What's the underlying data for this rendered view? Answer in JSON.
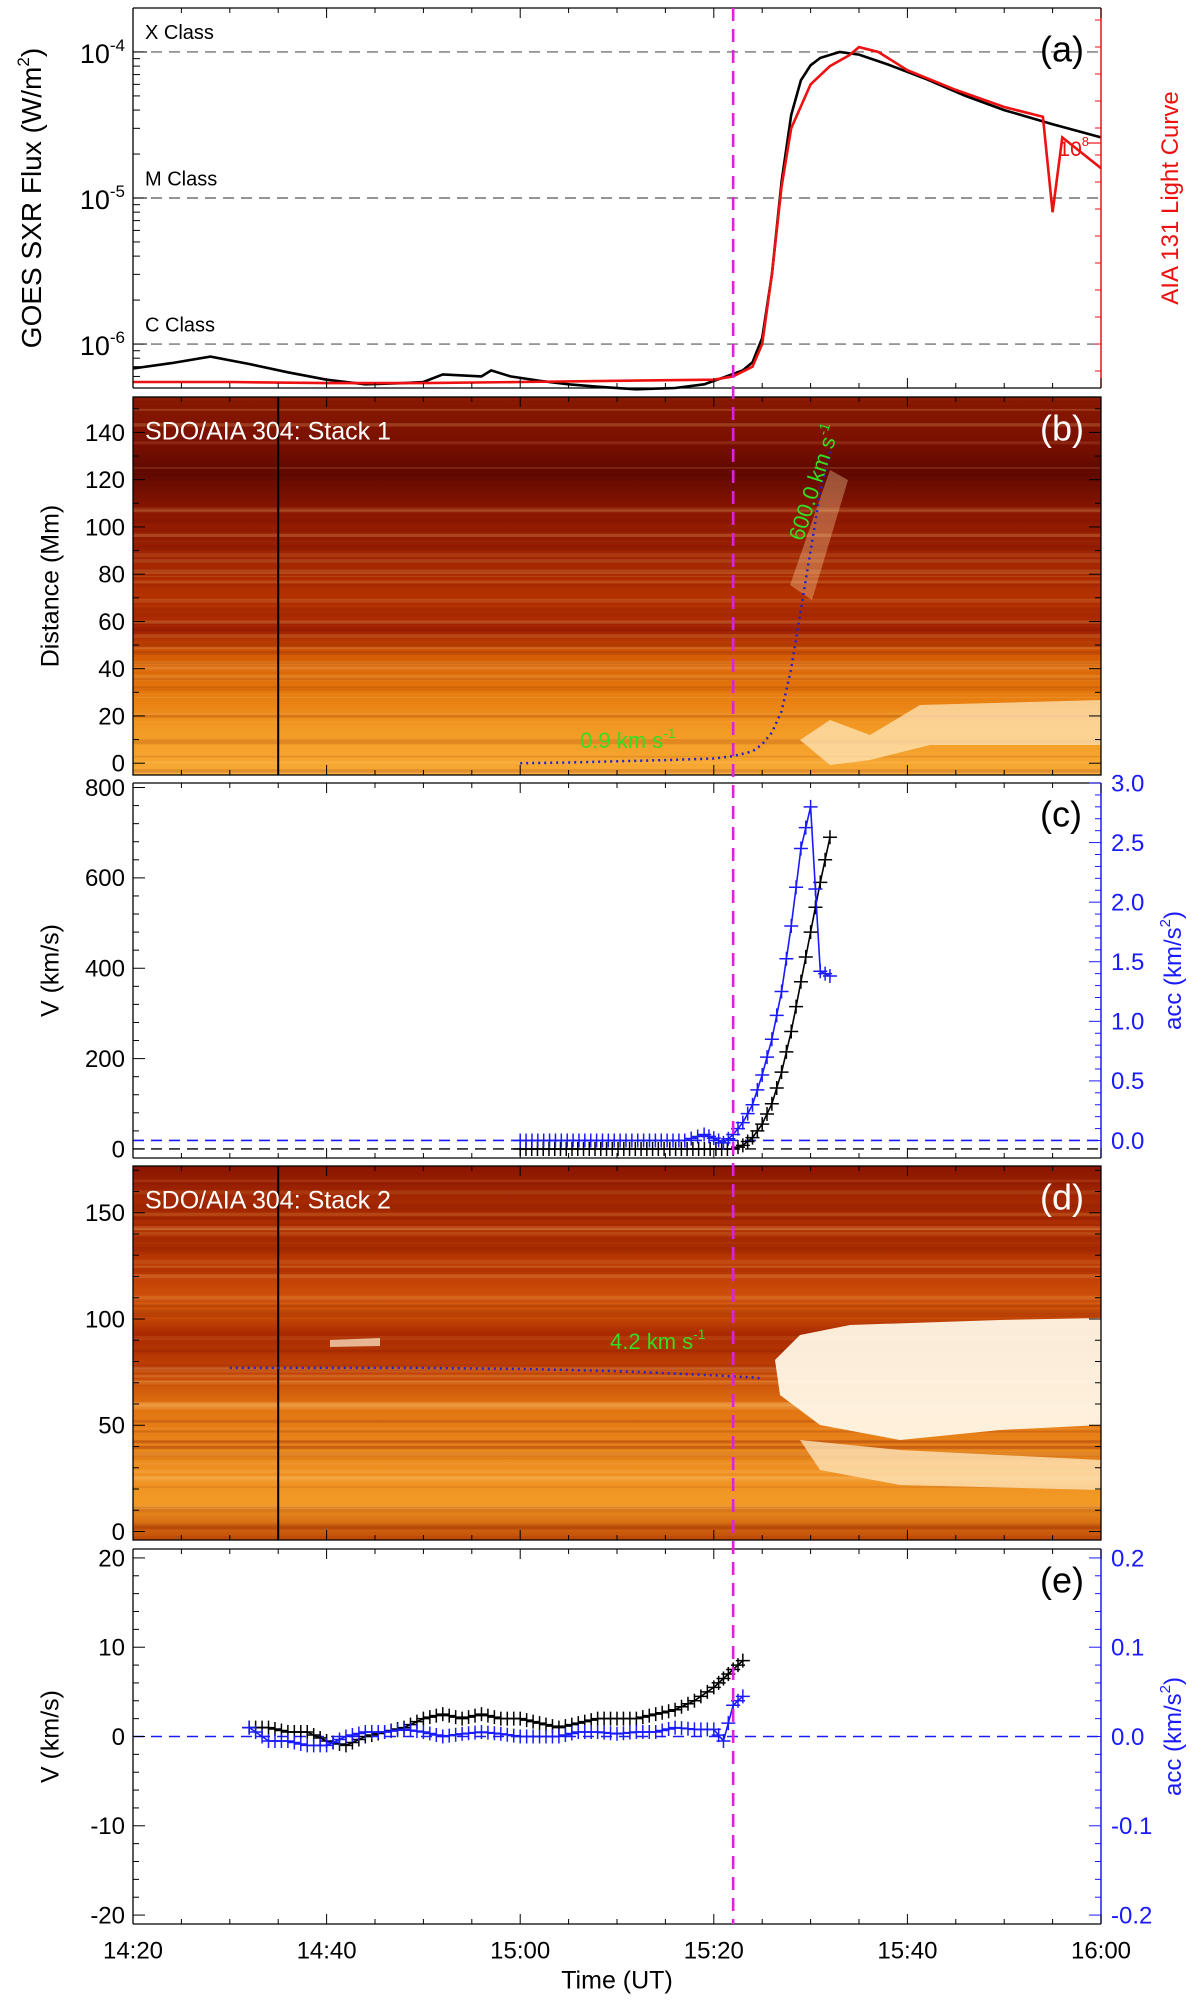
{
  "chart_data": [
    {
      "id": "a",
      "type": "line",
      "panel_label": "(a)",
      "ylabel": "GOES SXR Flux (W/m",
      "ylabel_sup": "2",
      "ylabel_close": ")",
      "y2label": "AIA 131 Light Curve",
      "y2_tick_label": "10",
      "y2_tick_sup": "8",
      "yscale": "log",
      "ylim": [
        5e-07,
        0.0002
      ],
      "yticks": [
        {
          "base": "10",
          "exp": "-6",
          "value": 1e-06
        },
        {
          "base": "10",
          "exp": "-5",
          "value": 1e-05
        },
        {
          "base": "10",
          "exp": "-4",
          "value": 0.0001
        }
      ],
      "class_lines": [
        {
          "label": "C Class",
          "value": 1e-06
        },
        {
          "label": "M Class",
          "value": 1e-05
        },
        {
          "label": "X Class",
          "value": 0.0001
        }
      ],
      "series": [
        {
          "color": "#000000",
          "x": [
            "14:20",
            "14:24",
            "14:28",
            "14:32",
            "14:36",
            "14:40",
            "14:44",
            "14:48",
            "14:50",
            "14:52",
            "14:54",
            "14:56",
            "14:57",
            "14:59",
            "15:02",
            "15:05",
            "15:08",
            "15:12",
            "15:16",
            "15:19",
            "15:21",
            "15:23",
            "15:24",
            "15:25",
            "15:26",
            "15:27",
            "15:28",
            "15:29",
            "15:30",
            "15:31",
            "15:33",
            "15:35",
            "15:38",
            "15:42",
            "15:46",
            "15:50",
            "15:55",
            "16:00"
          ],
          "y": [
            6.8e-07,
            7.4e-07,
            8.2e-07,
            7.3e-07,
            6.4e-07,
            5.7e-07,
            5.3e-07,
            5.4e-07,
            5.5e-07,
            6.2e-07,
            6.1e-07,
            6e-07,
            6.6e-07,
            6e-07,
            5.6e-07,
            5.3e-07,
            5.1e-07,
            4.9e-07,
            5e-07,
            5.3e-07,
            5.9e-07,
            6.6e-07,
            7.5e-07,
            1.1e-06,
            3e-06,
            1.3e-05,
            3.7e-05,
            6.4e-05,
            8.1e-05,
            9.1e-05,
            0.0001,
            9.6e-05,
            8.2e-05,
            6.5e-05,
            5e-05,
            4e-05,
            3.2e-05,
            2.6e-05
          ]
        },
        {
          "color": "#ee1111",
          "x": [
            "14:20",
            "14:30",
            "14:40",
            "14:50",
            "15:00",
            "15:10",
            "15:20",
            "15:22",
            "15:24",
            "15:25",
            "15:26",
            "15:27",
            "15:28",
            "15:30",
            "15:32",
            "15:34",
            "15:35",
            "15:37",
            "15:40",
            "15:45",
            "15:50",
            "15:54",
            "15:55",
            "15:56",
            "16:00"
          ],
          "y": [
            5.5e-07,
            5.5e-07,
            5.4e-07,
            5.4e-07,
            5.5e-07,
            5.6e-07,
            5.7e-07,
            6e-07,
            7e-07,
            1e-06,
            3e-06,
            1.2e-05,
            3e-05,
            6e-05,
            8e-05,
            9.5e-05,
            0.000108,
            0.0001,
            7.5e-05,
            5.5e-05,
            4.2e-05,
            3.6e-05,
            8e-06,
            2.6e-05,
            1.6e-05
          ]
        }
      ]
    },
    {
      "id": "b",
      "type": "heatmap",
      "panel_label": "(b)",
      "title": "SDO/AIA 304: Stack 1",
      "ylabel": "Distance (Mm)",
      "ylim": [
        -5,
        155
      ],
      "yticks": [
        0,
        20,
        40,
        60,
        80,
        100,
        120,
        140
      ],
      "annotations": [
        {
          "text": "0.9 km s",
          "sup": "-1"
        },
        {
          "text": "600.0 km s",
          "sup": "-1"
        }
      ],
      "fit_curve": {
        "x": [
          "15:00",
          "15:05",
          "15:10",
          "15:15",
          "15:20",
          "15:22",
          "15:24",
          "15:25",
          "15:26",
          "15:27",
          "15:28",
          "15:29",
          "15:30",
          "15:31",
          "15:32"
        ],
        "y": [
          0,
          0.3,
          0.8,
          1.3,
          2,
          3,
          5,
          8,
          13,
          22,
          40,
          65,
          90,
          115,
          132
        ]
      }
    },
    {
      "id": "c",
      "type": "line",
      "panel_label": "(c)",
      "ylabel": "V (km/s)",
      "y2label": "acc (km/s",
      "y2label_sup": "2",
      "y2label_close": ")",
      "ylim": [
        -20,
        810
      ],
      "yticks": [
        0,
        200,
        400,
        600,
        800
      ],
      "y2lim": [
        -0.147,
        3.0
      ],
      "y2ticks": [
        "0.0",
        "0.5",
        "1.0",
        "1.5",
        "2.0",
        "2.5",
        "3.0"
      ],
      "series": [
        {
          "name": "V",
          "color": "#000000",
          "axis": "left",
          "x": [
            "15:00",
            "15:22",
            "15:23",
            "15:24",
            "15:25",
            "15:26",
            "15:27",
            "15:28",
            "15:29",
            "15:30",
            "15:31",
            "15:32"
          ],
          "y": [
            0,
            0,
            8,
            25,
            55,
            100,
            170,
            260,
            370,
            480,
            590,
            690
          ]
        },
        {
          "name": "acc",
          "color": "#1a1aff",
          "axis": "right",
          "x": [
            "15:00",
            "15:17",
            "15:19",
            "15:20",
            "15:21",
            "15:22",
            "15:23",
            "15:24",
            "15:25",
            "15:26",
            "15:27",
            "15:28",
            "15:29",
            "15:30",
            "15:31",
            "15:32"
          ],
          "y": [
            0,
            0,
            0.05,
            0.02,
            -0.02,
            0.05,
            0.15,
            0.3,
            0.55,
            0.85,
            1.25,
            1.8,
            2.45,
            2.8,
            1.42,
            1.38
          ]
        }
      ]
    },
    {
      "id": "d",
      "type": "heatmap",
      "panel_label": "(d)",
      "title": "SDO/AIA 304: Stack 2",
      "ylim": [
        -4,
        172
      ],
      "yticks": [
        0,
        50,
        100,
        150
      ],
      "annotations": [
        {
          "text": "4.2 km s",
          "sup": "-1"
        }
      ],
      "fit_curve": {
        "x": [
          "14:30",
          "14:40",
          "14:50",
          "15:00",
          "15:10",
          "15:15",
          "15:20",
          "15:22",
          "15:24",
          "15:25"
        ],
        "y": [
          77,
          77,
          77,
          76.5,
          75.5,
          74.5,
          73.5,
          73,
          72.5,
          72
        ]
      }
    },
    {
      "id": "e",
      "type": "line",
      "panel_label": "(e)",
      "ylabel": "V (km/s)",
      "y2label": "acc (km/s",
      "y2label_sup": "2",
      "y2label_close": ")",
      "ylim": [
        -21,
        21
      ],
      "yticks": [
        -20,
        -10,
        0,
        10,
        20
      ],
      "y2lim": [
        -0.21,
        0.21
      ],
      "y2ticks": [
        "-0.2",
        "-0.1",
        "0.0",
        "0.1",
        "0.2"
      ],
      "xlabel": "Time (UT)",
      "xticks": [
        "14:20",
        "14:40",
        "15:00",
        "15:20",
        "15:40",
        "16:00"
      ],
      "xlim": [
        "14:20",
        "16:00"
      ],
      "series": [
        {
          "name": "V",
          "color": "#000000",
          "axis": "left",
          "x": [
            "14:32",
            "14:34",
            "14:36",
            "14:38",
            "14:40",
            "14:42",
            "14:44",
            "14:46",
            "14:48",
            "14:50",
            "14:52",
            "14:54",
            "14:56",
            "14:58",
            "15:00",
            "15:02",
            "15:04",
            "15:06",
            "15:08",
            "15:10",
            "15:12",
            "15:14",
            "15:16",
            "15:18",
            "15:20",
            "15:21",
            "15:22",
            "15:23"
          ],
          "y": [
            1,
            1,
            0.5,
            0.5,
            -0.5,
            -1,
            0,
            0.5,
            1,
            2,
            2.5,
            2,
            2.5,
            2,
            2,
            1.5,
            1,
            1.5,
            2,
            2,
            2,
            2.5,
            3,
            4,
            5.5,
            6.5,
            7.5,
            8.5
          ]
        },
        {
          "name": "acc",
          "color": "#1a1aff",
          "axis": "right",
          "x": [
            "14:32",
            "14:34",
            "14:36",
            "14:38",
            "14:40",
            "14:42",
            "14:44",
            "14:46",
            "14:48",
            "14:50",
            "14:52",
            "14:54",
            "14:56",
            "14:58",
            "15:00",
            "15:02",
            "15:04",
            "15:06",
            "15:08",
            "15:10",
            "15:12",
            "15:14",
            "15:16",
            "15:18",
            "15:20",
            "15:21",
            "15:22",
            "15:23"
          ],
          "y": [
            0.01,
            -0.005,
            -0.005,
            -0.01,
            -0.01,
            0,
            0.005,
            0.005,
            0.008,
            0.005,
            0,
            0.003,
            0.005,
            0.003,
            0,
            0,
            0,
            0.005,
            0.005,
            0.003,
            0.005,
            0.005,
            0.01,
            0.008,
            0.008,
            -0.005,
            0.035,
            0.045
          ]
        }
      ]
    }
  ],
  "reference_time": "15:22"
}
